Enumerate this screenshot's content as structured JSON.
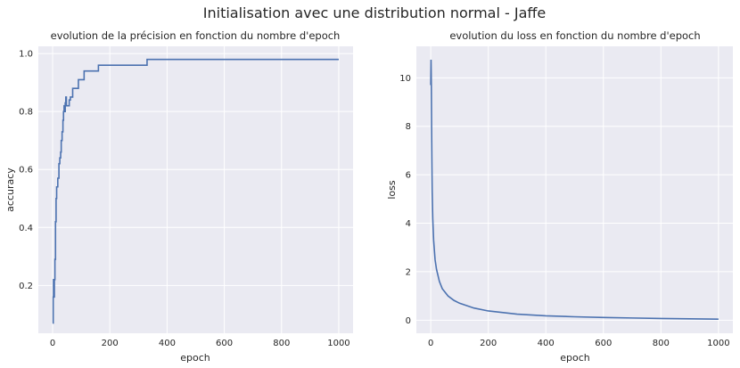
{
  "figure": {
    "suptitle": "Initialisation avec une distribution normal - Jaffe"
  },
  "chart_data": [
    {
      "type": "line",
      "title": "evolution de la précision en fonction du nombre d'epoch",
      "xlabel": "epoch",
      "ylabel": "accuracy",
      "xlim": [
        -50,
        1050
      ],
      "ylim": [
        0.035,
        1.025
      ],
      "xticks": [
        0,
        200,
        400,
        600,
        800,
        1000
      ],
      "yticks": [
        0.2,
        0.4,
        0.6,
        0.8,
        1.0
      ],
      "ytick_labels": [
        "0.2",
        "0.4",
        "0.6",
        "0.8",
        "1.0"
      ],
      "grid": true,
      "line_color": "#4c72b0",
      "step": true,
      "series": [
        {
          "x": [
            0,
            2,
            3,
            4,
            6,
            8,
            10,
            12,
            14,
            16,
            18,
            20,
            22,
            25,
            28,
            30,
            33,
            36,
            38,
            40,
            42,
            44,
            46,
            48,
            52,
            55,
            58,
            62,
            66,
            70,
            75,
            80,
            90,
            100,
            110,
            125,
            140,
            160,
            200,
            250,
            300,
            330,
            400,
            500,
            600,
            700,
            800,
            900,
            1000
          ],
          "y": [
            0.07,
            0.16,
            0.22,
            0.16,
            0.22,
            0.29,
            0.42,
            0.5,
            0.54,
            0.54,
            0.57,
            0.57,
            0.62,
            0.64,
            0.66,
            0.7,
            0.73,
            0.77,
            0.8,
            0.82,
            0.8,
            0.83,
            0.85,
            0.82,
            0.82,
            0.82,
            0.84,
            0.85,
            0.85,
            0.88,
            0.88,
            0.88,
            0.91,
            0.91,
            0.94,
            0.94,
            0.94,
            0.96,
            0.96,
            0.96,
            0.96,
            0.98,
            0.98,
            0.98,
            0.98,
            0.98,
            0.98,
            0.98,
            0.98
          ]
        }
      ]
    },
    {
      "type": "line",
      "title": "evolution du loss en fonction du nombre d'epoch",
      "xlabel": "epoch",
      "ylabel": "loss",
      "xlim": [
        -50,
        1050
      ],
      "ylim": [
        -0.54,
        11.3
      ],
      "xticks": [
        0,
        200,
        400,
        600,
        800,
        1000
      ],
      "yticks": [
        0,
        2,
        4,
        6,
        8,
        10
      ],
      "ytick_labels": [
        "0",
        "2",
        "4",
        "6",
        "8",
        "10"
      ],
      "grid": true,
      "line_color": "#4c72b0",
      "step": false,
      "series": [
        {
          "x": [
            0,
            1,
            2,
            3,
            4,
            5,
            7,
            10,
            15,
            20,
            30,
            40,
            60,
            80,
            100,
            150,
            200,
            300,
            400,
            500,
            600,
            700,
            800,
            900,
            1000
          ],
          "y": [
            9.7,
            10.75,
            9.8,
            8.0,
            6.5,
            5.3,
            4.2,
            3.3,
            2.5,
            2.1,
            1.6,
            1.3,
            1.0,
            0.82,
            0.7,
            0.5,
            0.38,
            0.25,
            0.18,
            0.14,
            0.11,
            0.09,
            0.07,
            0.055,
            0.04
          ]
        }
      ]
    }
  ]
}
